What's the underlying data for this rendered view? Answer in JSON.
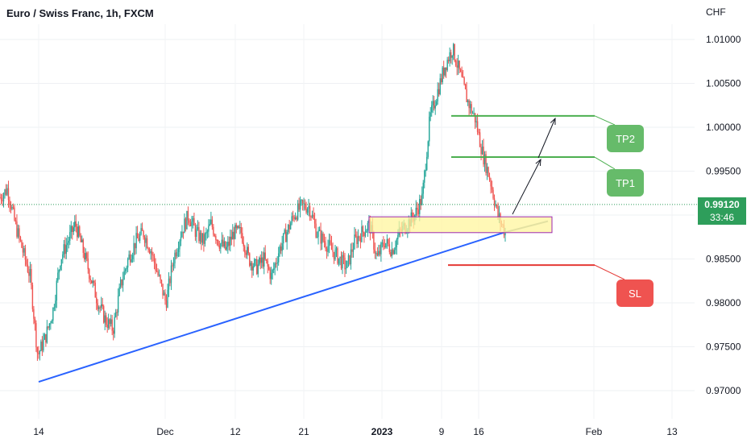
{
  "header": {
    "title": "Euro / Swiss Franc, 1h, FXCM",
    "currency": "CHF"
  },
  "price_box": {
    "price": "0.99120",
    "countdown": "33:46"
  },
  "colors": {
    "up": "#26a69a",
    "down": "#ef5350",
    "trendline": "#2962ff",
    "tp": "#4caf50",
    "sl": "#e53935",
    "zone_fill": "#fff59d",
    "zone_border": "#9c27b0",
    "current": "#2e9e5b"
  },
  "chart_data": {
    "type": "candlestick",
    "symbol": "EURCHF",
    "timeframe": "1h",
    "y_ticks": [
      "1.01000",
      "1.00500",
      "1.00000",
      "0.99500",
      "0.99000",
      "0.98500",
      "0.98000",
      "0.97500",
      "0.97000"
    ],
    "ylim": [
      0.9675,
      1.0125
    ],
    "x_ticks": [
      {
        "label": "14",
        "bold": false
      },
      {
        "label": "Dec",
        "bold": false
      },
      {
        "label": "12",
        "bold": false
      },
      {
        "label": "21",
        "bold": false
      },
      {
        "label": "2023",
        "bold": true
      },
      {
        "label": "9",
        "bold": false
      },
      {
        "label": "16",
        "bold": false
      },
      {
        "label": "Feb",
        "bold": false
      },
      {
        "label": "13",
        "bold": false
      }
    ],
    "price_path": [
      [
        0.0,
        0.992
      ],
      [
        0.02,
        0.993
      ],
      [
        0.04,
        0.989
      ],
      [
        0.06,
        0.986
      ],
      [
        0.08,
        0.983
      ],
      [
        0.1,
        0.974
      ],
      [
        0.12,
        0.976
      ],
      [
        0.14,
        0.979
      ],
      [
        0.16,
        0.985
      ],
      [
        0.18,
        0.987
      ],
      [
        0.2,
        0.989
      ],
      [
        0.22,
        0.986
      ],
      [
        0.24,
        0.983
      ],
      [
        0.26,
        0.98
      ],
      [
        0.28,
        0.978
      ],
      [
        0.3,
        0.977
      ],
      [
        0.32,
        0.982
      ],
      [
        0.34,
        0.985
      ],
      [
        0.36,
        0.987
      ],
      [
        0.38,
        0.988
      ],
      [
        0.4,
        0.986
      ],
      [
        0.42,
        0.983
      ],
      [
        0.44,
        0.98
      ],
      [
        0.46,
        0.985
      ],
      [
        0.48,
        0.988
      ],
      [
        0.5,
        0.99
      ],
      [
        0.52,
        0.988
      ],
      [
        0.54,
        0.987
      ],
      [
        0.56,
        0.989
      ],
      [
        0.58,
        0.987
      ],
      [
        0.6,
        0.986
      ],
      [
        0.62,
        0.988
      ],
      [
        0.64,
        0.988
      ],
      [
        0.66,
        0.985
      ],
      [
        0.68,
        0.984
      ],
      [
        0.7,
        0.985
      ],
      [
        0.72,
        0.983
      ],
      [
        0.74,
        0.986
      ],
      [
        0.76,
        0.988
      ],
      [
        0.78,
        0.99
      ],
      [
        0.8,
        0.991
      ],
      [
        0.82,
        0.991
      ],
      [
        0.84,
        0.988
      ],
      [
        0.86,
        0.987
      ],
      [
        0.88,
        0.986
      ],
      [
        0.9,
        0.985
      ],
      [
        0.92,
        0.984
      ],
      [
        0.94,
        0.987
      ],
      [
        0.96,
        0.988
      ],
      [
        0.98,
        0.989
      ],
      [
        1.0,
        0.985
      ],
      [
        1.02,
        0.987
      ],
      [
        1.04,
        0.986
      ],
      [
        1.06,
        0.988
      ],
      [
        1.08,
        0.989
      ],
      [
        1.1,
        0.99
      ],
      [
        1.12,
        0.992
      ],
      [
        1.14,
        1.001
      ],
      [
        1.16,
        1.004
      ],
      [
        1.18,
        1.007
      ],
      [
        1.2,
        1.009
      ],
      [
        1.22,
        1.006
      ],
      [
        1.24,
        1.003
      ],
      [
        1.26,
        1.001
      ],
      [
        1.28,
        0.997
      ],
      [
        1.3,
        0.994
      ],
      [
        1.32,
        0.99
      ],
      [
        1.34,
        0.988
      ]
    ],
    "trendline": {
      "from": [
        0.971,
        "14"
      ],
      "to": [
        0.9893,
        "after 16"
      ]
    },
    "annotations": {
      "tp2": {
        "label": "TP2",
        "price": 1.0013
      },
      "tp1": {
        "label": "TP1",
        "price": 0.9966
      },
      "sl": {
        "label": "SL",
        "price": 0.9843
      },
      "zone": {
        "top": 0.9898,
        "bottom": 0.988
      }
    }
  }
}
